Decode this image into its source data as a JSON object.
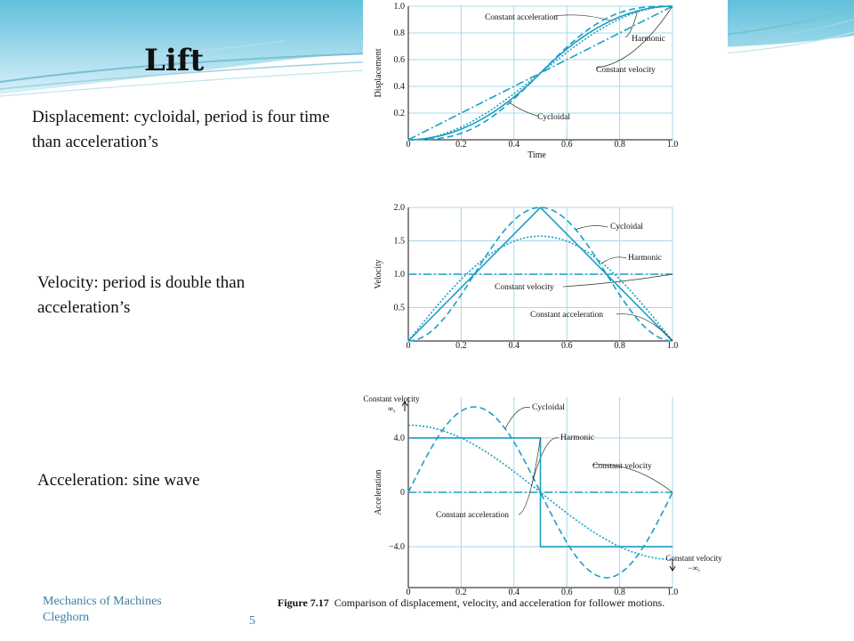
{
  "slide": {
    "title": "Lift",
    "notes": {
      "displacement": "Displacement: cycloidal, period is four time than acceleration’s",
      "velocity": "Velocity: period is double than acceleration’s",
      "acceleration": "Acceleration: sine wave"
    },
    "footer": {
      "course": "Mechanics of Machines",
      "author": "Cleghorn",
      "page": "5"
    },
    "caption": {
      "label": "Figure 7.17",
      "text": "Comparison of displacement, velocity, and acceleration for follower motions."
    },
    "colors": {
      "curve": "#1a9fc4",
      "grid": "#a9d8e8",
      "accent": "#3b7fa3"
    }
  },
  "chart_data": [
    {
      "type": "line",
      "xlabel": "Time",
      "ylabel": "Displacement",
      "xlim": [
        0,
        1.0
      ],
      "ylim": [
        0,
        1.0
      ],
      "x_ticks": [
        "0",
        "0.2",
        "0.4",
        "0.6",
        "0.8",
        "1.0"
      ],
      "y_ticks": [
        "0.2",
        "0.4",
        "0.6",
        "0.8",
        "1.0"
      ],
      "series": [
        {
          "name": "Constant acceleration",
          "x": [
            0,
            0.1,
            0.2,
            0.3,
            0.4,
            0.5,
            0.6,
            0.7,
            0.8,
            0.9,
            1.0
          ],
          "values": [
            0,
            0.02,
            0.08,
            0.18,
            0.32,
            0.5,
            0.68,
            0.82,
            0.92,
            0.98,
            1.0
          ]
        },
        {
          "name": "Harmonic",
          "x": [
            0,
            0.1,
            0.2,
            0.3,
            0.4,
            0.5,
            0.6,
            0.7,
            0.8,
            0.9,
            1.0
          ],
          "values": [
            0,
            0.024,
            0.095,
            0.206,
            0.345,
            0.5,
            0.655,
            0.794,
            0.905,
            0.976,
            1.0
          ]
        },
        {
          "name": "Constant velocity",
          "x": [
            0,
            1.0
          ],
          "values": [
            0,
            1.0
          ]
        },
        {
          "name": "Cycloidal",
          "x": [
            0,
            0.1,
            0.2,
            0.3,
            0.4,
            0.5,
            0.6,
            0.7,
            0.8,
            0.9,
            1.0
          ],
          "values": [
            0,
            0.006,
            0.049,
            0.149,
            0.306,
            0.5,
            0.694,
            0.851,
            0.951,
            0.994,
            1.0
          ]
        }
      ]
    },
    {
      "type": "line",
      "xlabel": "",
      "ylabel": "Velocity",
      "xlim": [
        0,
        1.0
      ],
      "ylim": [
        0,
        2.0
      ],
      "x_ticks": [
        "0",
        "0.2",
        "0.4",
        "0.6",
        "0.8",
        "1.0"
      ],
      "y_ticks": [
        "0.5",
        "1.0",
        "1.5",
        "2.0"
      ],
      "series": [
        {
          "name": "Cycloidal",
          "x": [
            0,
            0.1,
            0.2,
            0.3,
            0.4,
            0.5,
            0.6,
            0.7,
            0.8,
            0.9,
            1.0
          ],
          "values": [
            0,
            0.19,
            0.69,
            1.31,
            1.81,
            2.0,
            1.81,
            1.31,
            0.69,
            0.19,
            0
          ]
        },
        {
          "name": "Harmonic",
          "x": [
            0,
            0.1,
            0.2,
            0.3,
            0.4,
            0.5,
            0.6,
            0.7,
            0.8,
            0.9,
            1.0
          ],
          "values": [
            0,
            0.49,
            0.92,
            1.27,
            1.49,
            1.57,
            1.49,
            1.27,
            0.92,
            0.49,
            0
          ]
        },
        {
          "name": "Constant velocity",
          "x": [
            0,
            1.0
          ],
          "values": [
            1.0,
            1.0
          ]
        },
        {
          "name": "Constant acceleration",
          "x": [
            0,
            0.5,
            1.0
          ],
          "values": [
            0,
            2.0,
            0
          ]
        }
      ]
    },
    {
      "type": "line",
      "xlabel": "",
      "ylabel": "Acceleration",
      "xlim": [
        0,
        1.0
      ],
      "ylim": [
        -7,
        7
      ],
      "x_ticks": [
        "0",
        "0.2",
        "0.4",
        "0.6",
        "0.8",
        "1.0"
      ],
      "y_ticks": [
        "4.0",
        "0",
        "−4.0"
      ],
      "annotations": [
        "Constant velocity, ∞",
        "Constant velocity, −∞"
      ],
      "series": [
        {
          "name": "Cycloidal",
          "x": [
            0,
            0.125,
            0.25,
            0.375,
            0.5,
            0.625,
            0.75,
            0.875,
            1.0
          ],
          "values": [
            0,
            4.44,
            6.28,
            4.44,
            0,
            -4.44,
            -6.28,
            -4.44,
            0
          ]
        },
        {
          "name": "Harmonic",
          "x": [
            0,
            0.125,
            0.25,
            0.375,
            0.5,
            0.625,
            0.75,
            0.875,
            1.0
          ],
          "values": [
            4.93,
            4.56,
            3.49,
            1.89,
            0,
            -1.89,
            -3.49,
            -4.56,
            -4.93
          ]
        },
        {
          "name": "Constant velocity",
          "x": [
            0,
            1.0
          ],
          "values": [
            0,
            0
          ]
        },
        {
          "name": "Constant acceleration",
          "x": [
            0,
            0.5,
            0.5,
            1.0
          ],
          "values": [
            4.0,
            4.0,
            -4.0,
            -4.0
          ]
        }
      ]
    }
  ]
}
